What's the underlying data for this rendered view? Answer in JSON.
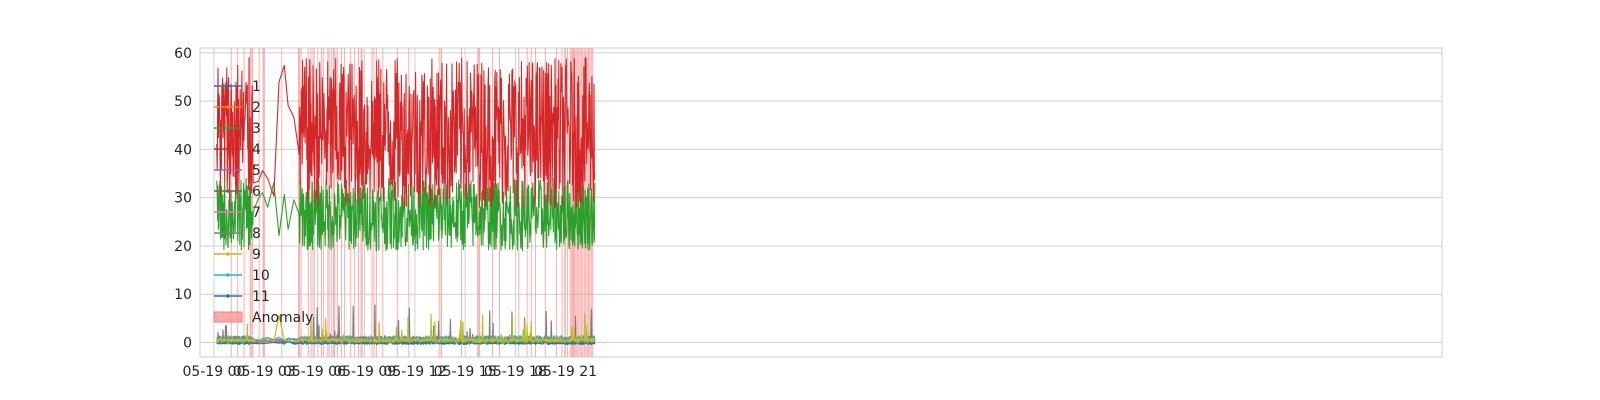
{
  "chart_data": {
    "type": "line",
    "title": "",
    "xlabel": "",
    "ylabel": "",
    "grid": true,
    "legend_placement": "left",
    "x_range": [
      "05-18 23:10",
      "05-22 01:20"
    ],
    "ylim": [
      -3,
      61
    ],
    "x_ticks": [
      {
        "time": "05-19 00:00",
        "label": "05-19 00"
      },
      {
        "time": "05-19 03:00",
        "label": "05-19 03"
      },
      {
        "time": "05-19 06:00",
        "label": "05-19 06"
      },
      {
        "time": "05-19 09:00",
        "label": "05-19 09"
      },
      {
        "time": "05-19 12:00",
        "label": "05-19 12"
      },
      {
        "time": "05-19 15:00",
        "label": "05-19 15"
      },
      {
        "time": "05-19 18:00",
        "label": "05-19 18"
      },
      {
        "time": "05-19 21:00",
        "label": "05-19 21"
      }
    ],
    "y_ticks": [
      0,
      10,
      20,
      30,
      40,
      50,
      60
    ],
    "series": [
      {
        "name": "1",
        "color": "#1f77b4",
        "range": [
          -0.4,
          0.4
        ]
      },
      {
        "name": "2",
        "color": "#ff7f0e",
        "range": [
          0,
          0.6
        ]
      },
      {
        "name": "3",
        "color": "#2ca02c",
        "range": [
          19,
          34
        ]
      },
      {
        "name": "4",
        "color": "#d62728",
        "range": [
          28,
          59
        ]
      },
      {
        "name": "5",
        "color": "#9467bd",
        "range": [
          0,
          0.3
        ]
      },
      {
        "name": "6",
        "color": "#8c564b",
        "range": [
          0,
          0.3
        ]
      },
      {
        "name": "7",
        "color": "#e377c2",
        "range": [
          0,
          0.3
        ]
      },
      {
        "name": "8",
        "color": "#7f7f7f",
        "range": [
          0,
          8
        ]
      },
      {
        "name": "9",
        "color": "#bcbd22",
        "range": [
          0,
          6
        ]
      },
      {
        "name": "10",
        "color": "#17becf",
        "range": [
          0.2,
          1.4
        ]
      },
      {
        "name": "11",
        "color": "#1f77b4",
        "range": [
          -0.3,
          0.3
        ]
      }
    ],
    "series_data_span": [
      "05-19 00:10",
      "05-19 22:45"
    ],
    "sparse_gaps": [
      [
        "05-19 02:20",
        "05-19 05:00"
      ]
    ],
    "anomaly_label": "Anomaly",
    "anomaly_color": "#ff9999",
    "anomalies": [
      "05-19 01:02",
      "05-19 01:25",
      "05-19 01:48",
      "05-19 02:10",
      "05-19 02:13",
      "05-19 02:18",
      "05-19 02:42",
      "05-19 02:56",
      "05-19 03:00",
      "05-19 04:03",
      "05-19 05:03",
      "05-19 05:06",
      "05-19 05:12",
      "05-19 05:38",
      "05-19 05:48",
      "05-19 05:55",
      "05-19 06:12",
      "05-19 06:25",
      "05-19 06:32",
      "05-19 06:48",
      "05-19 06:53",
      "05-19 07:02",
      "05-19 07:08",
      "05-19 07:12",
      "05-19 07:22",
      "05-19 07:37",
      "05-19 07:48",
      "05-19 08:10",
      "05-19 08:24",
      "05-19 08:38",
      "05-19 08:47",
      "05-19 08:51",
      "05-19 09:26",
      "05-19 09:33",
      "05-19 09:42",
      "05-19 10:05",
      "05-19 10:57",
      "05-19 11:38",
      "05-19 13:27",
      "05-19 13:34",
      "05-19 13:35",
      "05-19 14:47",
      "05-19 15:45",
      "05-19 15:49",
      "05-19 15:51",
      "05-19 16:38",
      "05-19 17:03",
      "05-19 18:12",
      "05-19 18:42",
      "05-19 18:57",
      "05-19 19:12",
      "05-19 19:47",
      "05-19 20:27",
      "05-19 20:47",
      "05-19 20:57",
      "05-19 21:07",
      "05-19 21:17",
      "05-19 21:22",
      "05-19 21:25",
      "05-19 21:28",
      "05-19 21:32",
      "05-19 21:37",
      "05-19 21:42",
      "05-19 21:47",
      "05-19 21:52",
      "05-19 21:57",
      "05-19 22:02",
      "05-19 22:07",
      "05-19 22:12",
      "05-19 22:17",
      "05-19 22:22",
      "05-19 22:27",
      "05-19 22:32",
      "05-19 22:37"
    ]
  }
}
